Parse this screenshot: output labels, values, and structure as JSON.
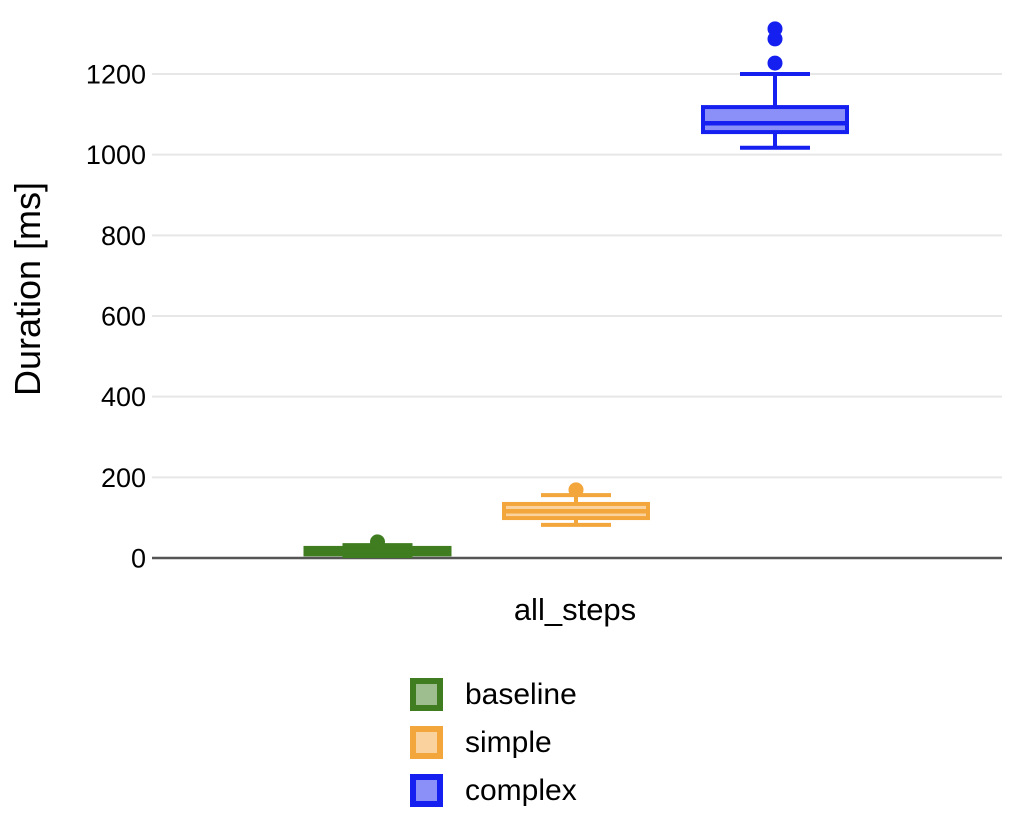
{
  "chart_data": {
    "type": "boxplot",
    "title": "",
    "ylabel": "Duration [ms]",
    "xlabel": "",
    "categories": [
      "all_steps"
    ],
    "yticks": [
      0,
      200,
      400,
      600,
      800,
      1000,
      1200
    ],
    "ylim": [
      0,
      1390
    ],
    "grid": true,
    "grid_color": "#e7e7e7",
    "axis_line_color": "#555555",
    "legend_position": "bottom-center",
    "series": [
      {
        "name": "baseline",
        "stroke": "#3f7d20",
        "fill": "#9fbe90",
        "box": {
          "low": 5,
          "q1": 9,
          "median": 17,
          "q3": 25,
          "high": 32
        },
        "outliers": [
          40
        ]
      },
      {
        "name": "simple",
        "stroke": "#f3a63c",
        "fill": "#f9d29e",
        "box": {
          "low": 82,
          "q1": 99,
          "median": 116,
          "q3": 134,
          "high": 156
        },
        "outliers": [
          169
        ]
      },
      {
        "name": "complex",
        "stroke": "#1520f0",
        "fill": "#8a90f8",
        "box": {
          "low": 1017,
          "q1": 1056,
          "median": 1078,
          "q3": 1118,
          "high": 1200
        },
        "outliers": [
          1227,
          1287,
          1312
        ]
      }
    ]
  }
}
